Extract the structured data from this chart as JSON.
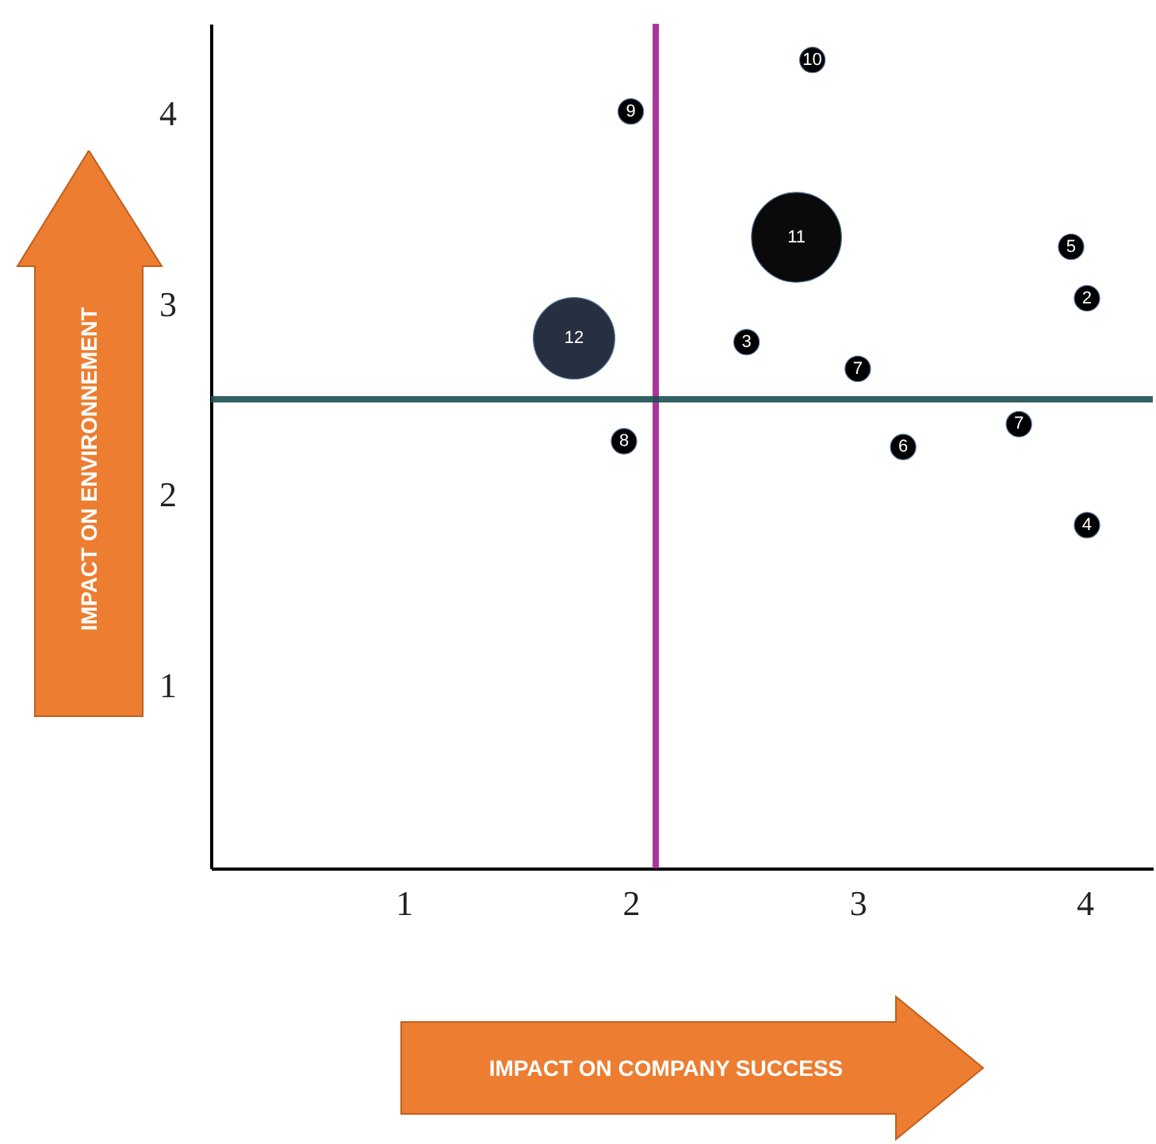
{
  "chart_data": {
    "type": "bubble",
    "ylabel": "IMPACT ON ENVIRONNEMENT",
    "x": [
      2.8,
      2.0,
      2.73,
      3.94,
      4.01,
      1.75,
      2.51,
      3.0,
      3.71,
      1.97,
      3.2,
      4.01
    ],
    "values": [
      4.28,
      4.01,
      3.35,
      3.3,
      3.03,
      2.82,
      2.8,
      2.66,
      2.37,
      2.28,
      2.25,
      1.84
    ],
    "sizes": [
      0.08,
      0.08,
      1,
      0.08,
      0.08,
      0.82,
      0.08,
      0.08,
      0.08,
      0.08,
      0.08,
      0.08
    ],
    "colors": [
      "#000000",
      "#000000",
      "#0a0a0a",
      "#000000",
      "#000000",
      "#263040",
      "#000000",
      "#000000",
      "#000000",
      "#000000",
      "#000000",
      "#000000"
    ],
    "annotations": [
      "IMPACT ON COMPANY SUCCESS",
      {
        "text": "10",
        "x": 2.8,
        "y": 4.28
      },
      {
        "text": "9",
        "x": 2.0,
        "y": 4.01
      },
      {
        "text": "11",
        "x": 2.73,
        "y": 3.35
      },
      {
        "text": "5",
        "x": 3.94,
        "y": 3.3
      },
      {
        "text": "2",
        "x": 4.01,
        "y": 3.03
      },
      {
        "text": "12",
        "x": 1.75,
        "y": 2.82
      },
      {
        "text": "3",
        "x": 2.51,
        "y": 2.8
      },
      {
        "text": "7",
        "x": 3.0,
        "y": 2.66
      },
      {
        "text": "7",
        "x": 3.71,
        "y": 2.37
      },
      {
        "text": "8",
        "x": 1.97,
        "y": 2.28
      },
      {
        "text": "6",
        "x": 3.2,
        "y": 2.25
      },
      {
        "text": "4",
        "x": 4.01,
        "y": 1.84
      }
    ],
    "ref_lines": [
      {
        "axis": "x",
        "value": 2.11,
        "color": "#a0208c"
      },
      {
        "axis": "y",
        "value": 2.5,
        "color": "#1d4f52"
      }
    ],
    "xlim": [
      0.15,
      4.3
    ],
    "ylim": [
      0.04,
      4.47
    ],
    "xticks": [
      1,
      2,
      3,
      4
    ],
    "yticks": [
      1,
      2,
      3,
      4
    ],
    "grid": false
  }
}
